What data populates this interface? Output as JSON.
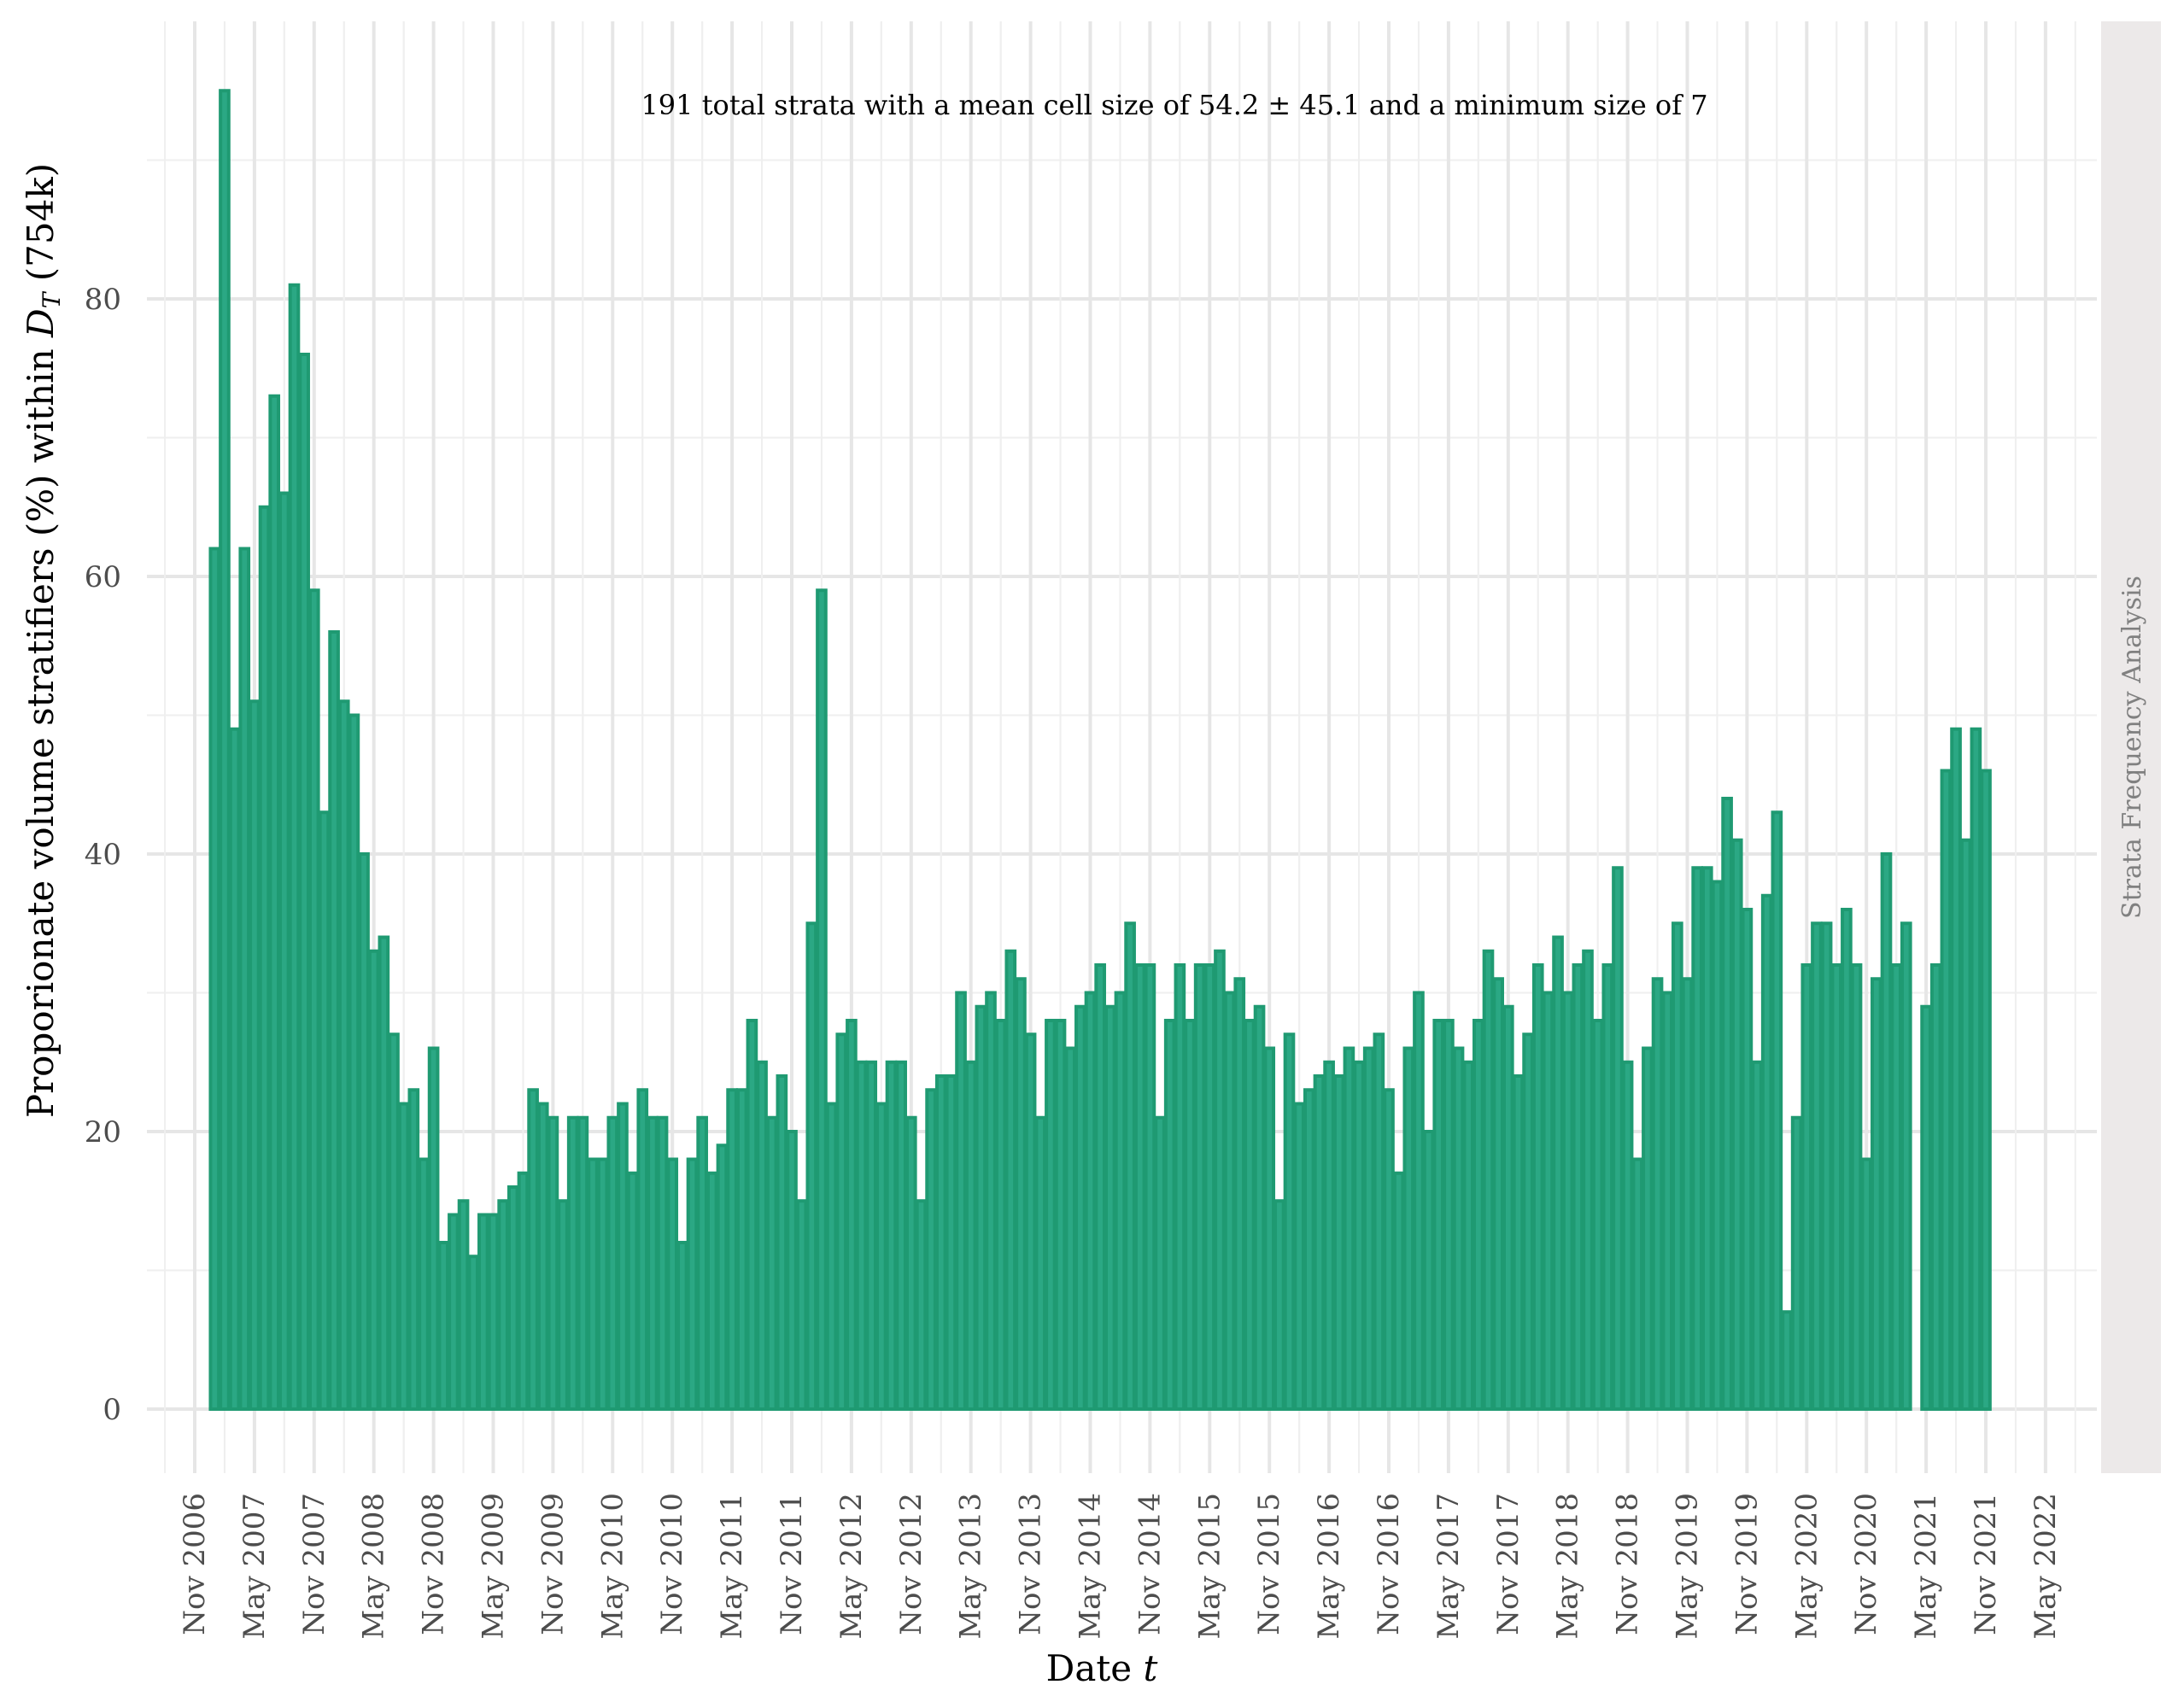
{
  "chart_data": {
    "type": "bar",
    "annotation": "191 total strata with a mean cell size of 54.2 ± 45.1 and a minimum size of 7",
    "xlabel": "Date t",
    "ylabel": "Proporionate volume stratifiers (%) within D_T (754k)",
    "ylabel_parts": {
      "main": "Proporionate volume stratifiers (%) within ",
      "var": "D",
      "sub": "T",
      "tail": " (754k)"
    },
    "xlabel_parts": {
      "main": "Date ",
      "var": "t"
    },
    "strip_label": "Strata Frequency Analysis",
    "x_ticks": [
      "Nov 2006",
      "May 2007",
      "Nov 2007",
      "May 2008",
      "Nov 2008",
      "May 2009",
      "Nov 2009",
      "May 2010",
      "Nov 2010",
      "May 2011",
      "Nov 2011",
      "May 2012",
      "Nov 2012",
      "May 2013",
      "Nov 2013",
      "May 2014",
      "Nov 2014",
      "May 2015",
      "Nov 2015",
      "May 2016",
      "Nov 2016",
      "May 2017",
      "Nov 2017",
      "May 2018",
      "Nov 2018",
      "May 2019",
      "Nov 2019",
      "May 2020",
      "Nov 2020",
      "May 2021",
      "Nov 2021",
      "May 2022"
    ],
    "y_ticks": [
      0,
      20,
      40,
      60,
      80
    ],
    "ylim": [
      -9,
      100
    ],
    "x_start": "2007-01",
    "months_gap_after_index": 170,
    "values": [
      62,
      95,
      49,
      62,
      51,
      65,
      73,
      66,
      81,
      76,
      59,
      43,
      56,
      51,
      50,
      40,
      33,
      34,
      27,
      22,
      23,
      18,
      26,
      12,
      14,
      15,
      11,
      14,
      14,
      15,
      16,
      17,
      23,
      22,
      21,
      15,
      21,
      21,
      18,
      18,
      21,
      22,
      17,
      23,
      21,
      21,
      18,
      12,
      18,
      21,
      17,
      19,
      23,
      23,
      28,
      25,
      21,
      24,
      20,
      15,
      35,
      59,
      22,
      27,
      28,
      25,
      25,
      22,
      25,
      25,
      21,
      15,
      23,
      24,
      24,
      30,
      25,
      29,
      30,
      28,
      33,
      31,
      27,
      21,
      28,
      28,
      26,
      29,
      30,
      32,
      29,
      30,
      35,
      32,
      32,
      21,
      28,
      32,
      28,
      32,
      32,
      33,
      30,
      31,
      28,
      29,
      26,
      15,
      27,
      22,
      23,
      24,
      25,
      24,
      26,
      25,
      26,
      27,
      23,
      17,
      26,
      30,
      20,
      28,
      28,
      26,
      25,
      28,
      33,
      31,
      29,
      24,
      27,
      32,
      30,
      34,
      30,
      32,
      33,
      28,
      32,
      39,
      25,
      18,
      26,
      31,
      30,
      35,
      31,
      39,
      39,
      38,
      44,
      41,
      36,
      25,
      37,
      43,
      7,
      21,
      32,
      35,
      35,
      32,
      36,
      32,
      18,
      31,
      40,
      32,
      35,
      29,
      32,
      46,
      49,
      41,
      49,
      46
    ],
    "colors": {
      "bar_fill": "#2ba884",
      "bar_stroke": "#1f9a72",
      "strip_bg": "#ece9e9",
      "grid": "#e6e6e6"
    },
    "grid": true
  }
}
